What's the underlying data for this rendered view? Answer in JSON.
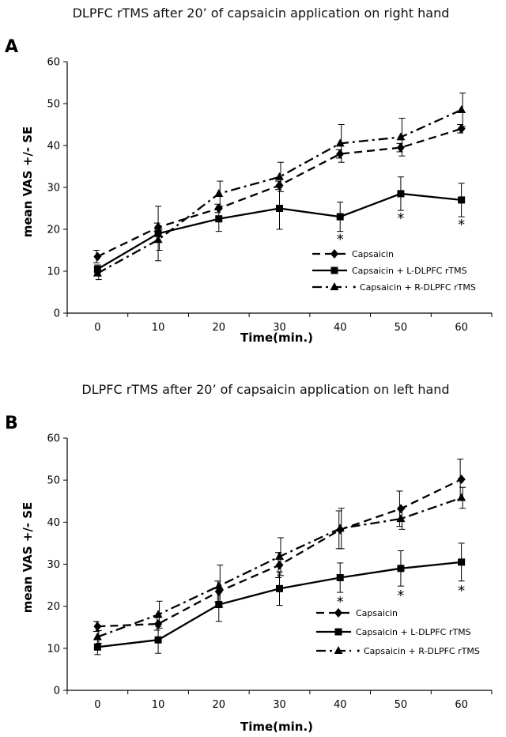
{
  "chart_data": [
    {
      "panel": "A",
      "type": "line",
      "title": "DLPFC rTMS after 20’ of capsaicin application on right hand",
      "xlabel": "Time(min.)",
      "ylabel": "mean VAS +/- SE",
      "x": [
        0,
        10,
        20,
        30,
        40,
        50,
        60
      ],
      "xticks": [
        "0",
        "10",
        "20",
        "30",
        "40",
        "50",
        "60"
      ],
      "yticks": [
        "0",
        "10",
        "20",
        "30",
        "40",
        "50",
        "60"
      ],
      "ylim": [
        0,
        60
      ],
      "legend_position": "lower-right",
      "series": [
        {
          "name": "Capsaicin",
          "marker": "diamond",
          "line": "dashed",
          "values": [
            13.5,
            20.5,
            25,
            30.5,
            38,
            39.5,
            44
          ],
          "err": [
            1.5,
            1,
            1,
            1,
            1,
            1,
            1
          ]
        },
        {
          "name": "Capsaicin + L-DLPFC rTMS",
          "marker": "square",
          "line": "solid",
          "values": [
            10.5,
            19,
            22.5,
            25,
            23,
            28.5,
            27
          ],
          "err": [
            1,
            6.5,
            3,
            5,
            3.5,
            4,
            4
          ]
        },
        {
          "name": "• Capsaicin + R-DLPFC rTMS",
          "marker": "triangle",
          "line": "dashdot",
          "values": [
            9.5,
            17.5,
            28.5,
            32.5,
            40.5,
            42,
            48.5
          ],
          "err": [
            1.5,
            2.5,
            3,
            3.5,
            4.5,
            4.5,
            4
          ]
        }
      ],
      "significance": [
        {
          "x": 40,
          "label": "*"
        },
        {
          "x": 50,
          "label": "*"
        },
        {
          "x": 60,
          "label": "*"
        }
      ]
    },
    {
      "panel": "B",
      "type": "line",
      "title": "DLPFC rTMS after 20’ of capsaicin application on left hand",
      "xlabel": "Time(min.)",
      "ylabel": "mean VAS +/- SE",
      "x": [
        0,
        10,
        20,
        30,
        40,
        50,
        60
      ],
      "xticks": [
        "0",
        "10",
        "20",
        "30",
        "40",
        "50",
        "60"
      ],
      "yticks": [
        "0",
        "10",
        "20",
        "30",
        "40",
        "50",
        "60"
      ],
      "ylim": [
        0,
        60
      ],
      "legend_position": "lower-right",
      "series": [
        {
          "name": "Capsaicin",
          "marker": "diamond",
          "line": "dashed",
          "values": [
            15.2,
            15.8,
            23.5,
            29.8,
            38.2,
            43.2,
            50.2
          ],
          "err": [
            1.2,
            1.5,
            2.5,
            3,
            4.5,
            4.2,
            4.8
          ]
        },
        {
          "name": "Capsaicin + L-DLPFC rTMS",
          "marker": "square",
          "line": "solid",
          "values": [
            10.3,
            12,
            20.4,
            24.2,
            26.8,
            29,
            30.5
          ],
          "err": [
            1.8,
            3.2,
            4,
            4,
            3.5,
            4.2,
            4.5
          ]
        },
        {
          "name": "• Capsaicin + R-DLPFC rTMS",
          "marker": "triangle",
          "line": "dashdot",
          "values": [
            12.7,
            18,
            24.8,
            31.8,
            38.5,
            40.8,
            45.8
          ],
          "err": [
            1.5,
            3.2,
            5,
            4.5,
            4.8,
            2.5,
            2.5
          ]
        }
      ],
      "significance": [
        {
          "x": 40,
          "label": "*"
        },
        {
          "x": 50,
          "label": "*"
        },
        {
          "x": 60,
          "label": "*"
        }
      ]
    }
  ]
}
